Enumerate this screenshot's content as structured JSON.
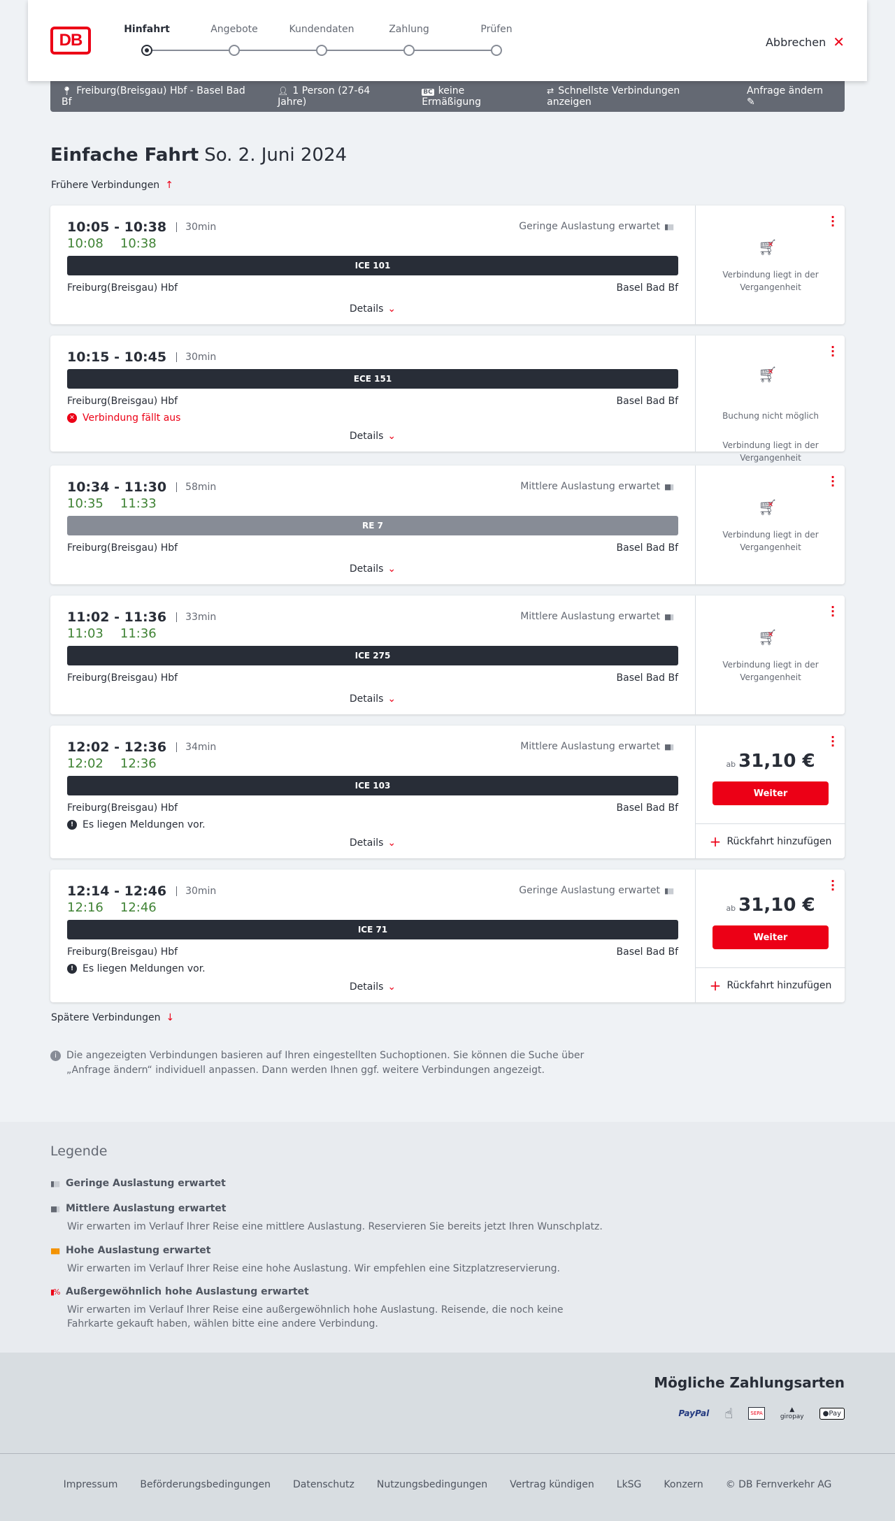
{
  "header": {
    "logo": "DB",
    "steps": [
      "Hinfahrt",
      "Angebote",
      "Kundendaten",
      "Zahlung",
      "Prüfen"
    ],
    "active_step": 0,
    "cancel": "Abbrechen"
  },
  "infobar": {
    "route": "Freiburg(Breisgau) Hbf - Basel Bad Bf",
    "passengers": "1 Person (27-64 Jahre)",
    "discount_badge": "BC",
    "discount": "keine Ermäßigung",
    "option": "Schnellste Verbindungen anzeigen",
    "change": "Anfrage ändern"
  },
  "page": {
    "title": "Einfache Fahrt",
    "date": "So. 2. Juni 2024",
    "earlier": "Frühere Verbindungen",
    "later": "Spätere Verbindungen",
    "note": "Die angezeigten Verbindungen basieren auf Ihren eingestellten Suchoptionen. Sie können die Suche über „Anfrage ändern“ individuell anpassen. Dann werden Ihnen ggf. weitere Verbindungen angezeigt.",
    "details": "Details"
  },
  "connections": [
    {
      "times": "10:05 - 10:38",
      "duration": "30min",
      "rt_dep": "10:08",
      "rt_arr": "10:38",
      "load": "Geringe Auslastung erwartet",
      "train": "ICE 101",
      "from": "Freiburg(Breisgau) Hbf",
      "to": "Basel Bad Bf",
      "status1": "Verbindung liegt in der Vergangenheit"
    },
    {
      "times": "10:15 - 10:45",
      "duration": "30min",
      "train": "ECE 151",
      "from": "Freiburg(Breisgau) Hbf",
      "to": "Basel Bad Bf",
      "message": "Verbindung fällt aus",
      "status0": "Buchung nicht möglich",
      "status1": "Verbindung liegt in der Vergangenheit"
    },
    {
      "times": "10:34 - 11:30",
      "duration": "58min",
      "rt_dep": "10:35",
      "rt_arr": "11:33",
      "load": "Mittlere Auslastung erwartet",
      "train": "RE 7",
      "from": "Freiburg(Breisgau) Hbf",
      "to": "Basel Bad Bf",
      "status1": "Verbindung liegt in der Vergangenheit"
    },
    {
      "times": "11:02 - 11:36",
      "duration": "33min",
      "rt_dep": "11:03",
      "rt_arr": "11:36",
      "load": "Mittlere Auslastung erwartet",
      "train": "ICE 275",
      "from": "Freiburg(Breisgau) Hbf",
      "to": "Basel Bad Bf",
      "status1": "Verbindung liegt in der Vergangenheit"
    },
    {
      "times": "12:02 - 12:36",
      "duration": "34min",
      "rt_dep": "12:02",
      "rt_arr": "12:36",
      "load": "Mittlere Auslastung erwartet",
      "train": "ICE 103",
      "from": "Freiburg(Breisgau) Hbf",
      "to": "Basel Bad Bf",
      "message": "Es liegen Meldungen vor.",
      "price_prefix": "ab",
      "price": "31,10 €",
      "button": "Weiter",
      "return": "Rückfahrt hinzufügen"
    },
    {
      "times": "12:14 - 12:46",
      "duration": "30min",
      "rt_dep": "12:16",
      "rt_arr": "12:46",
      "load": "Geringe Auslastung erwartet",
      "train": "ICE 71",
      "from": "Freiburg(Breisgau) Hbf",
      "to": "Basel Bad Bf",
      "message": "Es liegen Meldungen vor.",
      "price_prefix": "ab",
      "price": "31,10 €",
      "button": "Weiter",
      "return": "Rückfahrt hinzufügen"
    }
  ],
  "legend": {
    "title": "Legende",
    "items": [
      {
        "label": "Geringe Auslastung erwartet"
      },
      {
        "label": "Mittlere Auslastung erwartet",
        "text": "Wir erwarten im Verlauf Ihrer Reise eine mittlere Auslastung. Reservieren Sie bereits jetzt Ihren Wunschplatz."
      },
      {
        "label": "Hohe Auslastung erwartet",
        "text": "Wir erwarten im Verlauf Ihrer Reise eine hohe Auslastung. Wir empfehlen eine Sitzplatzreservierung."
      },
      {
        "label": "Außergewöhnlich hohe Auslastung erwartet",
        "text": "Wir erwarten im Verlauf Ihrer Reise eine außergewöhnlich hohe Auslastung. Reisende, die noch keine Fahrkarte gekauft haben, wählen bitte eine andere Verbindung."
      }
    ]
  },
  "payment": {
    "title": "Mögliche Zahlungsarten",
    "methods": [
      "PayPal",
      "SEPA",
      "giropay",
      "Pay"
    ]
  },
  "footer": {
    "links": [
      "Impressum",
      "Beförderungsbedingungen",
      "Datenschutz",
      "Nutzungsbedingungen",
      "Vertrag kündigen",
      "LkSG",
      "Konzern",
      "© DB Fernverkehr AG"
    ]
  },
  "colors": {
    "brand": "#ec0016",
    "realtime": "#408335",
    "train_bar": "#282d37",
    "infobar": "#646973"
  }
}
